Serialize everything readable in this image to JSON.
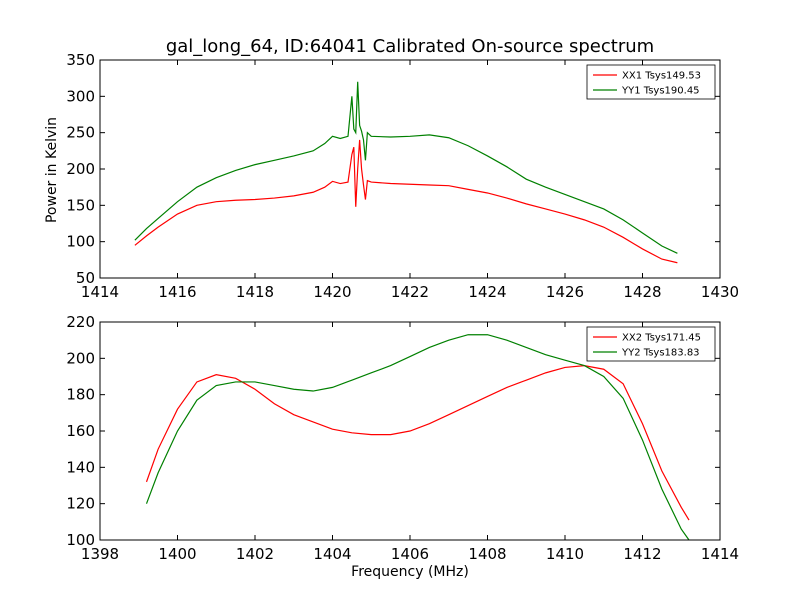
{
  "figure": {
    "title": "gal_long_64, ID:64041 Calibrated On-source spectrum",
    "xlabel": "Frequency (MHz)",
    "ylabel": "Power in Kelvin"
  },
  "chart_data": [
    {
      "type": "line",
      "title": "gal_long_64, ID:64041 Calibrated On-source spectrum",
      "xlabel": "",
      "ylabel": "Power in Kelvin",
      "xlim": [
        1414,
        1430
      ],
      "ylim": [
        50,
        350
      ],
      "xticks": [
        1414,
        1416,
        1418,
        1420,
        1422,
        1424,
        1426,
        1428,
        1430
      ],
      "yticks": [
        50,
        100,
        150,
        200,
        250,
        300,
        350
      ],
      "grid": false,
      "legend_position": "top-right",
      "series": [
        {
          "name": "XX1 Tsys149.53",
          "color": "#ff0000",
          "x": [
            1414.9,
            1415.2,
            1415.5,
            1416.0,
            1416.5,
            1417.0,
            1417.5,
            1418.0,
            1418.5,
            1419.0,
            1419.5,
            1419.8,
            1420.0,
            1420.2,
            1420.4,
            1420.5,
            1420.55,
            1420.6,
            1420.65,
            1420.7,
            1420.75,
            1420.8,
            1420.85,
            1420.9,
            1421.0,
            1421.5,
            1422.0,
            1422.5,
            1423.0,
            1423.5,
            1424.0,
            1424.5,
            1425.0,
            1425.5,
            1426.0,
            1426.5,
            1427.0,
            1427.5,
            1428.0,
            1428.5,
            1428.9
          ],
          "values": [
            95,
            108,
            120,
            138,
            150,
            155,
            157,
            158,
            160,
            163,
            168,
            175,
            183,
            180,
            182,
            220,
            230,
            148,
            200,
            240,
            200,
            178,
            158,
            184,
            182,
            180,
            179,
            178,
            177,
            172,
            167,
            160,
            152,
            145,
            138,
            130,
            120,
            106,
            90,
            76,
            71
          ]
        },
        {
          "name": "YY1 Tsys190.45",
          "color": "#008000",
          "x": [
            1414.9,
            1415.2,
            1415.5,
            1416.0,
            1416.5,
            1417.0,
            1417.5,
            1418.0,
            1418.5,
            1419.0,
            1419.5,
            1419.8,
            1420.0,
            1420.2,
            1420.4,
            1420.5,
            1420.55,
            1420.6,
            1420.65,
            1420.7,
            1420.75,
            1420.8,
            1420.85,
            1420.9,
            1421.0,
            1421.5,
            1422.0,
            1422.5,
            1423.0,
            1423.5,
            1424.0,
            1424.5,
            1425.0,
            1425.5,
            1426.0,
            1426.5,
            1427.0,
            1427.5,
            1428.0,
            1428.5,
            1428.9
          ],
          "values": [
            102,
            118,
            132,
            155,
            175,
            188,
            198,
            206,
            212,
            218,
            225,
            235,
            245,
            242,
            245,
            300,
            255,
            250,
            320,
            260,
            252,
            240,
            212,
            250,
            245,
            244,
            245,
            247,
            243,
            232,
            218,
            203,
            186,
            175,
            165,
            155,
            145,
            130,
            112,
            94,
            84
          ]
        }
      ]
    },
    {
      "type": "line",
      "title": "",
      "xlabel": "Frequency (MHz)",
      "ylabel": "",
      "xlim": [
        1398,
        1414
      ],
      "ylim": [
        100,
        220
      ],
      "xticks": [
        1398,
        1400,
        1402,
        1404,
        1406,
        1408,
        1410,
        1412,
        1414
      ],
      "yticks": [
        100,
        120,
        140,
        160,
        180,
        200,
        220
      ],
      "grid": false,
      "legend_position": "top-right",
      "series": [
        {
          "name": "XX2 Tsys171.45",
          "color": "#ff0000",
          "x": [
            1399.2,
            1399.5,
            1400.0,
            1400.5,
            1401.0,
            1401.5,
            1402.0,
            1402.5,
            1403.0,
            1403.5,
            1404.0,
            1404.5,
            1405.0,
            1405.5,
            1406.0,
            1406.5,
            1407.0,
            1407.5,
            1408.0,
            1408.5,
            1409.0,
            1409.5,
            1410.0,
            1410.5,
            1411.0,
            1411.5,
            1412.0,
            1412.5,
            1413.0,
            1413.2
          ],
          "values": [
            132,
            150,
            172,
            187,
            191,
            189,
            183,
            175,
            169,
            165,
            161,
            159,
            158,
            158,
            160,
            164,
            169,
            174,
            179,
            184,
            188,
            192,
            195,
            196,
            194,
            186,
            164,
            138,
            118,
            111
          ]
        },
        {
          "name": "YY2 Tsys183.83",
          "color": "#008000",
          "x": [
            1399.2,
            1399.5,
            1400.0,
            1400.5,
            1401.0,
            1401.5,
            1402.0,
            1402.5,
            1403.0,
            1403.5,
            1404.0,
            1404.5,
            1405.0,
            1405.5,
            1406.0,
            1406.5,
            1407.0,
            1407.5,
            1408.0,
            1408.5,
            1409.0,
            1409.5,
            1410.0,
            1410.5,
            1411.0,
            1411.5,
            1412.0,
            1412.5,
            1413.0,
            1413.2
          ],
          "values": [
            120,
            137,
            160,
            177,
            185,
            187,
            187,
            185,
            183,
            182,
            184,
            188,
            192,
            196,
            201,
            206,
            210,
            213,
            213,
            210,
            206,
            202,
            199,
            196,
            190,
            178,
            155,
            128,
            106,
            100
          ]
        }
      ]
    }
  ]
}
